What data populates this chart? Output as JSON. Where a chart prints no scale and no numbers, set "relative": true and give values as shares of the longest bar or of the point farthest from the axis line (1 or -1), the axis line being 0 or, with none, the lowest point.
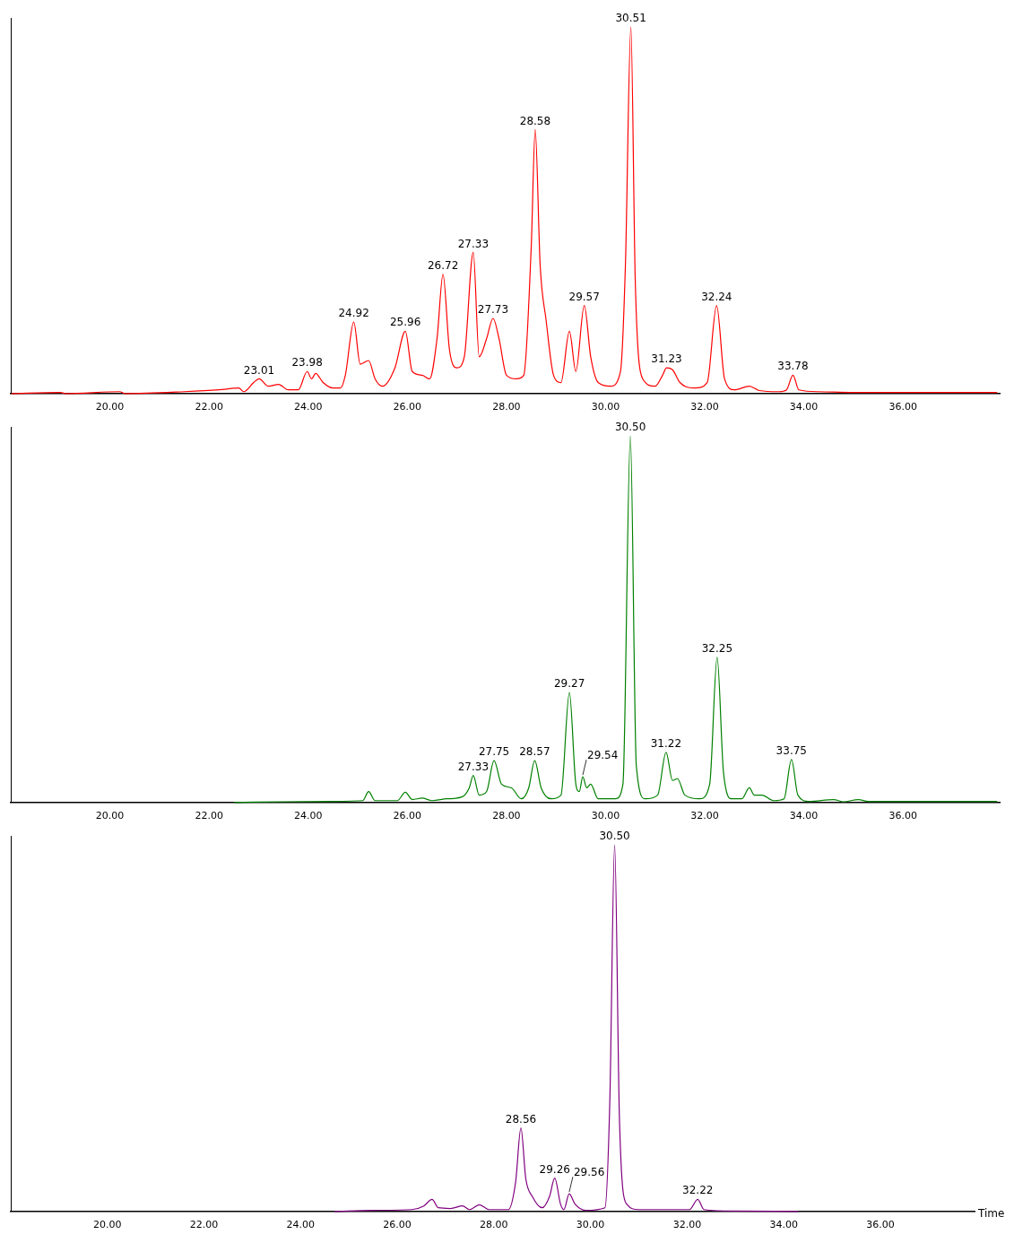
{
  "chart_data": [
    {
      "type": "line",
      "relative": true,
      "xlim": [
        18,
        37.95
      ],
      "xticks": [
        {
          "value": 20,
          "label": "20.00"
        },
        {
          "value": 22,
          "label": "22.00"
        },
        {
          "value": 24,
          "label": "24.00"
        },
        {
          "value": 26,
          "label": "26.00"
        },
        {
          "value": 28,
          "label": "28.00"
        },
        {
          "value": 30,
          "label": "30.00"
        },
        {
          "value": 32,
          "label": "32.00"
        },
        {
          "value": 34,
          "label": "34.00"
        },
        {
          "value": 36,
          "label": "36.00"
        }
      ],
      "series": [
        {
          "color": "#ff0000",
          "x": [
            18.0,
            19.0,
            19.1,
            20.2,
            20.3,
            21.5,
            22.2,
            22.6,
            22.7,
            22.9,
            23.01,
            23.2,
            23.4,
            23.6,
            23.8,
            23.98,
            24.07,
            24.15,
            24.3,
            24.5,
            24.65,
            24.75,
            24.92,
            25.05,
            25.22,
            25.35,
            25.5,
            25.75,
            25.96,
            26.1,
            26.3,
            26.45,
            26.6,
            26.72,
            26.85,
            27.0,
            27.15,
            27.33,
            27.45,
            27.6,
            27.73,
            27.85,
            28.0,
            28.2,
            28.35,
            28.5,
            28.58,
            28.68,
            28.8,
            28.95,
            29.1,
            29.27,
            29.4,
            29.57,
            29.7,
            29.85,
            30.1,
            30.3,
            30.4,
            30.51,
            30.6,
            30.75,
            31.0,
            31.15,
            31.23,
            31.35,
            31.5,
            31.8,
            32.05,
            32.24,
            32.4,
            32.6,
            32.9,
            33.1,
            33.5,
            33.65,
            33.78,
            33.9,
            34.3,
            35.0,
            35.6,
            37.9
          ],
          "values": [
            0,
            0.003,
            0,
            0.005,
            0,
            0.005,
            0.01,
            0.015,
            0.005,
            0.03,
            0.04,
            0.02,
            0.025,
            0.01,
            0.01,
            0.06,
            0.04,
            0.055,
            0.03,
            0.015,
            0.015,
            0.05,
            0.195,
            0.08,
            0.09,
            0.04,
            0.02,
            0.07,
            0.17,
            0.06,
            0.05,
            0.04,
            0.15,
            0.325,
            0.12,
            0.07,
            0.1,
            0.385,
            0.1,
            0.15,
            0.205,
            0.15,
            0.05,
            0.04,
            0.05,
            0.4,
            0.72,
            0.35,
            0.2,
            0.05,
            0.03,
            0.17,
            0.06,
            0.24,
            0.1,
            0.03,
            0.02,
            0.06,
            0.35,
            1,
            0.3,
            0.04,
            0.02,
            0.05,
            0.07,
            0.065,
            0.03,
            0.015,
            0.03,
            0.24,
            0.04,
            0.01,
            0.02,
            0.008,
            0.005,
            0.01,
            0.05,
            0.01,
            0.005,
            0.003,
            0.003,
            0.003
          ]
        }
      ],
      "annotations": [
        {
          "text": "23.01",
          "x": 23.01,
          "y": 0.04
        },
        {
          "text": "23.98",
          "x": 23.98,
          "y": 0.06
        },
        {
          "text": "24.92",
          "x": 24.92,
          "y": 0.195
        },
        {
          "text": "25.96",
          "x": 25.96,
          "y": 0.17
        },
        {
          "text": "26.72",
          "x": 26.72,
          "y": 0.325
        },
        {
          "text": "27.33",
          "x": 27.33,
          "y": 0.385
        },
        {
          "text": "27.73",
          "x": 27.73,
          "y": 0.205
        },
        {
          "text": "28.58",
          "x": 28.58,
          "y": 0.72
        },
        {
          "text": "29.57",
          "x": 29.57,
          "y": 0.24
        },
        {
          "text": "30.51",
          "x": 30.51,
          "y": 1
        },
        {
          "text": "31.23",
          "x": 31.23,
          "y": 0.07
        },
        {
          "text": "32.24",
          "x": 32.24,
          "y": 0.24
        },
        {
          "text": "33.78",
          "x": 33.78,
          "y": 0.05
        }
      ]
    },
    {
      "type": "line",
      "relative": true,
      "xlim": [
        18,
        37.95
      ],
      "xticks": [
        {
          "value": 20,
          "label": "20.00"
        },
        {
          "value": 22,
          "label": "22.00"
        },
        {
          "value": 24,
          "label": "24.00"
        },
        {
          "value": 26,
          "label": "26.00"
        },
        {
          "value": 28,
          "label": "28.00"
        },
        {
          "value": 30,
          "label": "30.00"
        },
        {
          "value": 32,
          "label": "32.00"
        },
        {
          "value": 34,
          "label": "34.00"
        },
        {
          "value": 36,
          "label": "36.00"
        }
      ],
      "series": [
        {
          "color": "#008000",
          "x": [
            22.5,
            23.5,
            24.5,
            25.1,
            25.22,
            25.35,
            25.8,
            25.96,
            26.1,
            26.3,
            26.5,
            26.8,
            27.1,
            27.25,
            27.33,
            27.45,
            27.6,
            27.75,
            27.9,
            28.1,
            28.3,
            28.45,
            28.57,
            28.7,
            28.9,
            29.1,
            29.27,
            29.4,
            29.47,
            29.54,
            29.62,
            29.7,
            29.85,
            30.2,
            30.35,
            30.5,
            30.62,
            30.8,
            31.05,
            31.22,
            31.35,
            31.45,
            31.6,
            31.9,
            32.1,
            32.25,
            32.38,
            32.55,
            32.75,
            32.9,
            33.0,
            33.15,
            33.4,
            33.6,
            33.75,
            33.88,
            34.1,
            34.6,
            34.8,
            35.1,
            35.3,
            37.9
          ],
          "values": [
            0,
            0.002,
            0.003,
            0.005,
            0.03,
            0.005,
            0.005,
            0.028,
            0.008,
            0.012,
            0.005,
            0.01,
            0.015,
            0.04,
            0.074,
            0.02,
            0.03,
            0.114,
            0.05,
            0.04,
            0.01,
            0.04,
            0.114,
            0.04,
            0.01,
            0.02,
            0.3,
            0.05,
            0.03,
            0.07,
            0.04,
            0.05,
            0.01,
            0.01,
            0.05,
            1,
            0.1,
            0.01,
            0.02,
            0.137,
            0.06,
            0.065,
            0.02,
            0.01,
            0.05,
            0.396,
            0.08,
            0.01,
            0.01,
            0.04,
            0.02,
            0.02,
            0.005,
            0.01,
            0.117,
            0.02,
            0.003,
            0.008,
            0.002,
            0.008,
            0.003,
            0.003
          ]
        }
      ],
      "annotations": [
        {
          "text": "27.33",
          "x": 27.33,
          "y": 0.074
        },
        {
          "text": "27.75",
          "x": 27.75,
          "y": 0.114
        },
        {
          "text": "28.57",
          "x": 28.57,
          "y": 0.114
        },
        {
          "text": "29.27",
          "x": 29.27,
          "y": 0.3
        },
        {
          "text": "29.54",
          "x": 29.54,
          "y": 0.07
        },
        {
          "text": "30.50",
          "x": 30.5,
          "y": 1
        },
        {
          "text": "31.22",
          "x": 31.22,
          "y": 0.137
        },
        {
          "text": "32.25",
          "x": 32.25,
          "y": 0.396
        },
        {
          "text": "33.75",
          "x": 33.75,
          "y": 0.117
        }
      ]
    },
    {
      "type": "line",
      "relative": true,
      "xlabel": "Time",
      "xlim": [
        18,
        37.95
      ],
      "xticks": [
        {
          "value": 20,
          "label": "20.00"
        },
        {
          "value": 22,
          "label": "22.00"
        },
        {
          "value": 24,
          "label": "24.00"
        },
        {
          "value": 26,
          "label": "26.00"
        },
        {
          "value": 28,
          "label": "28.00"
        },
        {
          "value": 30,
          "label": "30.00"
        },
        {
          "value": 32,
          "label": "32.00"
        },
        {
          "value": 34,
          "label": "34.00"
        },
        {
          "value": 36,
          "label": "36.00"
        }
      ],
      "series": [
        {
          "color": "#800080",
          "x": [
            24.7,
            25.5,
            26.3,
            26.55,
            26.72,
            26.85,
            27.1,
            27.35,
            27.5,
            27.7,
            27.9,
            28.3,
            28.45,
            28.56,
            28.66,
            28.8,
            29.0,
            29.15,
            29.26,
            29.38,
            29.45,
            29.56,
            29.68,
            29.9,
            30.3,
            30.4,
            30.5,
            30.6,
            30.75,
            31.0,
            31.5,
            32.05,
            32.22,
            32.35,
            33.0,
            34.3
          ],
          "values": [
            0,
            0.003,
            0.005,
            0.015,
            0.033,
            0.01,
            0.008,
            0.015,
            0.005,
            0.018,
            0.005,
            0.005,
            0.08,
            0.228,
            0.09,
            0.04,
            0.01,
            0.04,
            0.091,
            0.02,
            0.005,
            0.048,
            0.02,
            0.003,
            0.01,
            0.3,
            1,
            0.25,
            0.02,
            0.005,
            0.005,
            0.005,
            0.033,
            0.005,
            0.001,
            0
          ]
        }
      ],
      "annotations": [
        {
          "text": "28.56",
          "x": 28.56,
          "y": 0.228
        },
        {
          "text": "29.26",
          "x": 29.26,
          "y": 0.091
        },
        {
          "text": "29.56",
          "x": 29.56,
          "y": 0.048
        },
        {
          "text": "30.50",
          "x": 30.5,
          "y": 1
        },
        {
          "text": "32.22",
          "x": 32.22,
          "y": 0.033
        }
      ]
    }
  ]
}
